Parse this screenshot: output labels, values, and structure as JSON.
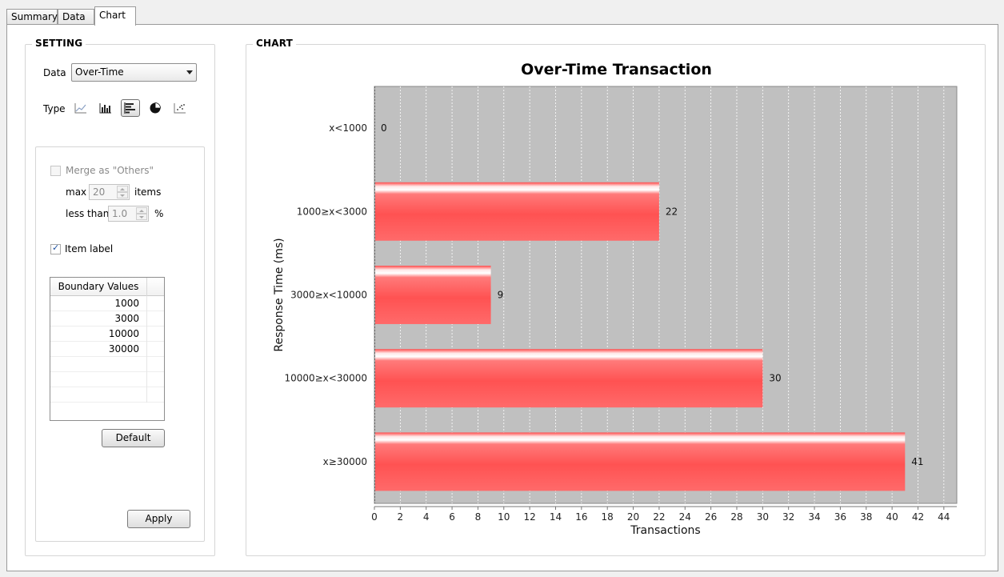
{
  "tabs": [
    {
      "label": "Summary",
      "active": false
    },
    {
      "label": "Data",
      "active": false
    },
    {
      "label": "Chart",
      "active": true
    }
  ],
  "setting": {
    "title": "SETTING",
    "data_label": "Data",
    "data_value": "Over-Time",
    "type_label": "Type",
    "type_icons": [
      "line-chart-icon",
      "bar-chart-icon",
      "horizontal-bar-chart-icon",
      "pie-chart-icon",
      "scatter-chart-icon"
    ],
    "selected_type": "horizontal-bar-chart-icon",
    "merge_label": "Merge as \"Others\"",
    "merge_checked": false,
    "max_label": "max",
    "max_value": "20",
    "items_label": "items",
    "less_than_label": "less than",
    "less_than_value": "1.0",
    "percent_label": "%",
    "item_label_text": "Item label",
    "item_label_checked": true,
    "boundary_header": "Boundary Values",
    "boundary_values": [
      "1000",
      "3000",
      "10000",
      "30000"
    ],
    "default_button": "Default",
    "apply_button": "Apply"
  },
  "chart": {
    "group_title": "CHART"
  },
  "chart_data": {
    "type": "bar",
    "orientation": "horizontal",
    "title": "Over-Time Transaction",
    "xlabel": "Transactions",
    "ylabel": "Response Time (ms)",
    "categories": [
      "x<1000",
      "1000≥x<3000",
      "3000≥x<10000",
      "10000≥x<30000",
      "x≥30000"
    ],
    "values": [
      0,
      22,
      9,
      30,
      41
    ],
    "xlim": [
      0,
      45
    ],
    "xticks": [
      0,
      2,
      4,
      6,
      8,
      10,
      12,
      14,
      16,
      18,
      20,
      22,
      24,
      26,
      28,
      30,
      32,
      34,
      36,
      38,
      40,
      42,
      44
    ],
    "grid": true,
    "data_labels": true,
    "bar_color": "#ff5a5a",
    "plot_background": "#c0c0c0"
  }
}
